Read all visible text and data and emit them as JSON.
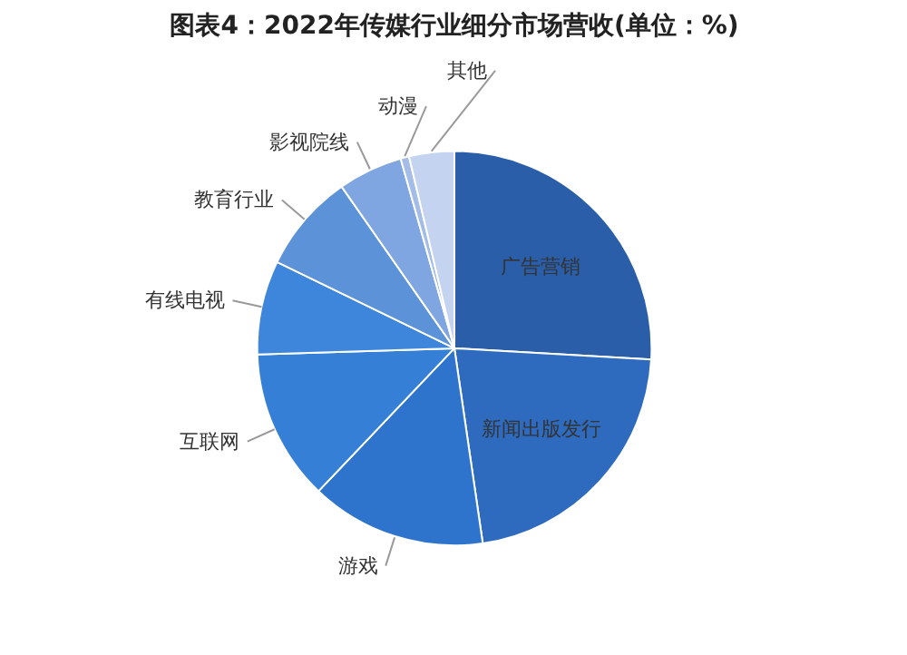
{
  "chart_data": {
    "type": "pie",
    "title": "图表4：2022年传媒行业细分市场营收(单位：%)",
    "categories": [
      "广告营销",
      "新闻出版发行",
      "游戏",
      "互联网",
      "有线电视",
      "教育行业",
      "影视院线",
      "动漫",
      "其他"
    ],
    "values": [
      25.9,
      21.8,
      14.4,
      12.4,
      7.7,
      8.1,
      5.3,
      0.7,
      3.7
    ],
    "colors": [
      "#2a5ea8",
      "#2e6bbf",
      "#2f74cc",
      "#3580d6",
      "#3d86dc",
      "#5c92d8",
      "#7fa6e0",
      "#a3bde8",
      "#c4d4f0"
    ]
  }
}
